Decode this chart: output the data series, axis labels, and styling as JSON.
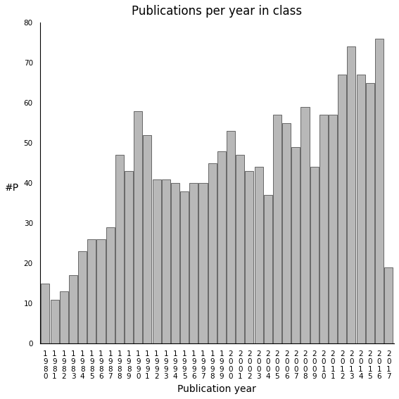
{
  "title": "Publications per year in class",
  "xlabel": "Publication year",
  "ylabel": "#P",
  "years": [
    1980,
    1981,
    1982,
    1983,
    1984,
    1985,
    1986,
    1987,
    1988,
    1989,
    1990,
    1991,
    1992,
    1993,
    1994,
    1995,
    1996,
    1997,
    1998,
    1999,
    2000,
    2001,
    2002,
    2003,
    2004,
    2005,
    2006,
    2007,
    2008,
    2009,
    2010,
    2011,
    2012,
    2013,
    2014,
    2015,
    2016,
    2017
  ],
  "values": [
    15,
    11,
    13,
    17,
    23,
    26,
    26,
    29,
    47,
    43,
    58,
    52,
    41,
    41,
    40,
    38,
    40,
    40,
    45,
    48,
    53,
    47,
    43,
    44,
    37,
    57,
    55,
    49,
    59,
    44,
    57,
    57,
    67,
    74,
    67,
    65,
    76,
    19
  ],
  "bar_color": "#b8b8b8",
  "bar_edge_color": "#555555",
  "ylim": [
    0,
    80
  ],
  "yticks": [
    0,
    10,
    20,
    30,
    40,
    50,
    60,
    70,
    80
  ],
  "bg_color": "#ffffff",
  "title_fontsize": 12,
  "label_fontsize": 10,
  "tick_fontsize": 7.5
}
